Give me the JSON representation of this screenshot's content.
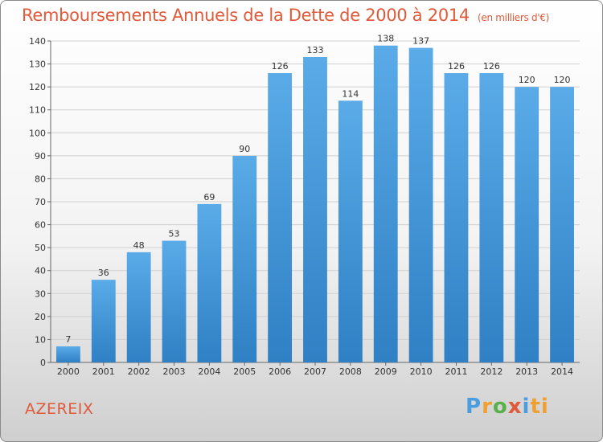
{
  "header": {
    "title": "Remboursements Annuels de la Dette de 2000 à 2014",
    "subtitle": "(en milliers d'€)"
  },
  "footer": {
    "commune": "AZEREIX",
    "logo_letters": [
      "P",
      "r",
      "o",
      "x",
      "i",
      "ti"
    ]
  },
  "colors": {
    "title": "#e05a3a",
    "bar_top": "#5aabe8",
    "bar_bottom": "#2f80c4",
    "grid": "#d0d0d0"
  },
  "chart_data": {
    "type": "bar",
    "title": "Remboursements Annuels de la Dette de 2000 à 2014",
    "subtitle": "(en milliers d'€)",
    "xlabel": "",
    "ylabel": "",
    "categories": [
      "2000",
      "2001",
      "2002",
      "2003",
      "2004",
      "2005",
      "2006",
      "2007",
      "2008",
      "2009",
      "2010",
      "2011",
      "2012",
      "2013",
      "2014"
    ],
    "values": [
      7,
      36,
      48,
      53,
      69,
      90,
      126,
      133,
      114,
      138,
      137,
      126,
      126,
      120,
      120
    ],
    "ylim": [
      0,
      140
    ],
    "yticks": [
      0,
      10,
      20,
      30,
      40,
      50,
      60,
      70,
      80,
      90,
      100,
      110,
      120,
      130,
      140
    ],
    "grid": true,
    "data_labels": true
  }
}
